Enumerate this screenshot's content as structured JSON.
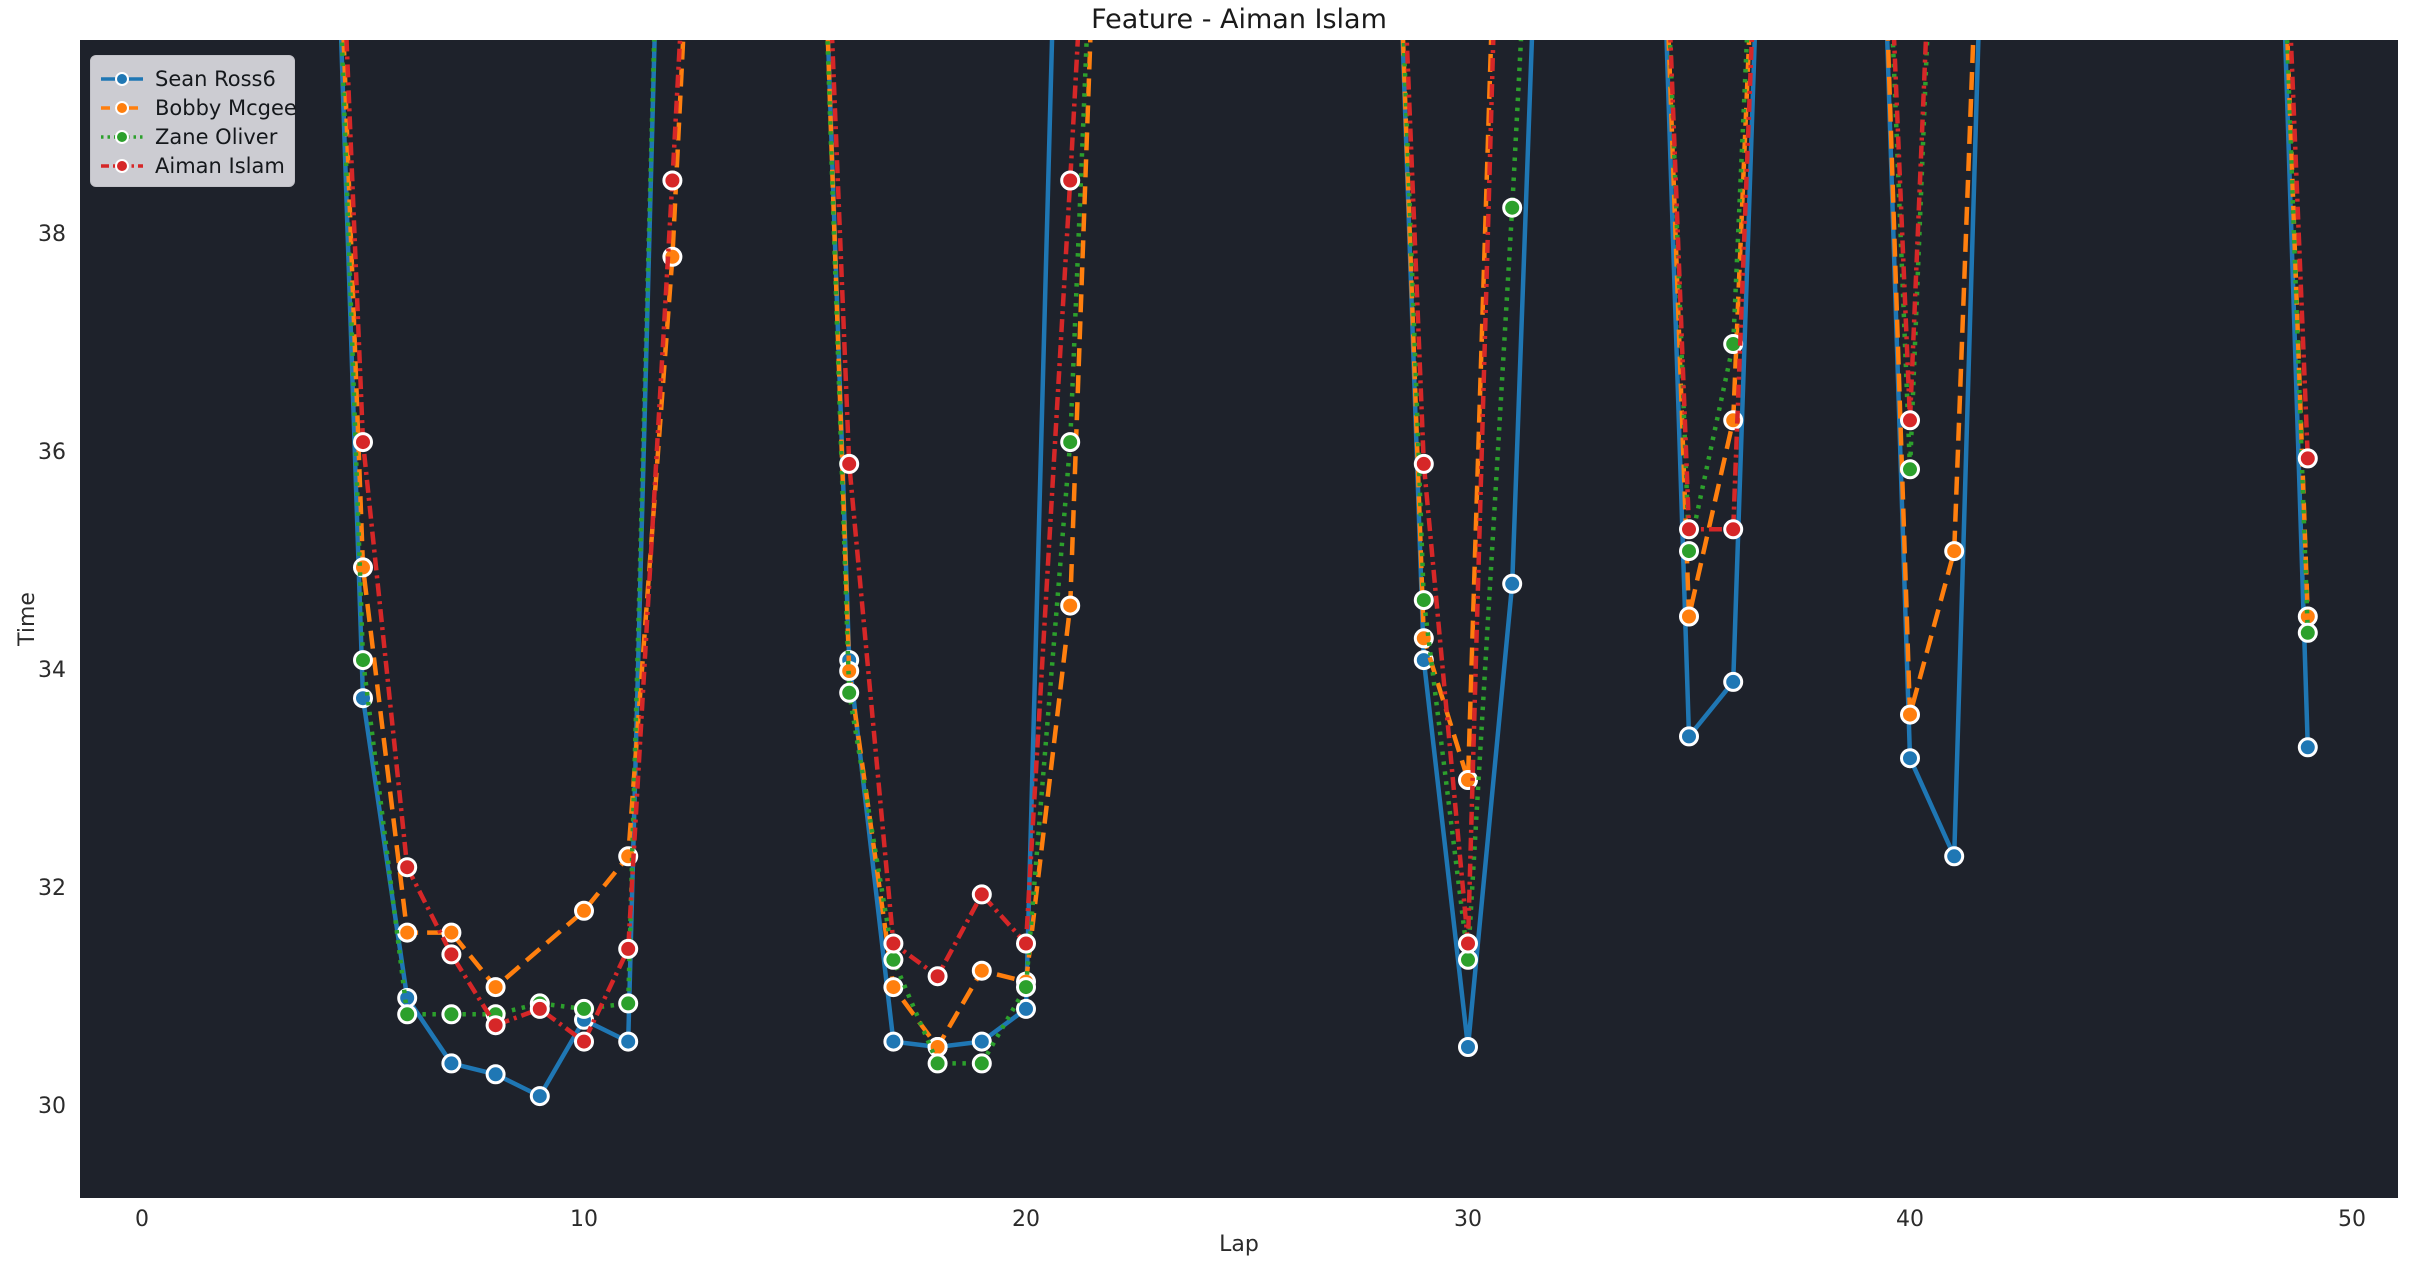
{
  "title": "Feature - Aiman Islam",
  "axes": {
    "xlabel": "Lap",
    "ylabel": "Time",
    "x_ticks": [
      0,
      10,
      20,
      30,
      40,
      50
    ],
    "y_ticks": [
      30,
      32,
      34,
      36,
      38
    ]
  },
  "legend": {
    "position": "upper-left",
    "items": [
      {
        "label": "Sean Ross6"
      },
      {
        "label": "Bobby Mcgee"
      },
      {
        "label": "Zane Oliver"
      },
      {
        "label": "Aiman Islam"
      }
    ]
  },
  "style": {
    "plot_background": "#1e222b",
    "figure_background": "#ffffff",
    "marker_edge": "#ffffff",
    "line_width": 4.5,
    "marker_radius": 8.5
  },
  "chart_data": {
    "type": "line",
    "title": "Feature - Aiman Islam",
    "xlabel": "Lap",
    "ylabel": "Time",
    "x_range": [
      -1.403,
      51.041
    ],
    "y_range": [
      29.165,
      39.789
    ],
    "grid": false,
    "offscale_value": 46,
    "note": "value 46 = spike going off the top of the axes (clipped, no visible marker)",
    "series": [
      {
        "name": "Sean Ross6",
        "color": "#1f77b4",
        "dash": "solid",
        "points": [
          [
            4,
            46
          ],
          [
            5,
            33.75
          ],
          [
            6,
            31.0
          ],
          [
            7,
            30.4
          ],
          [
            8,
            30.3
          ],
          [
            9,
            30.1
          ],
          [
            10,
            30.8
          ],
          [
            11,
            30.6
          ],
          [
            12,
            46
          ],
          [
            15,
            46
          ],
          [
            16,
            34.1
          ],
          [
            17,
            30.6
          ],
          [
            18,
            30.55
          ],
          [
            19,
            30.6
          ],
          [
            20,
            30.9
          ],
          [
            21,
            46
          ],
          [
            28,
            46
          ],
          [
            29,
            34.1
          ],
          [
            30,
            30.55
          ],
          [
            31,
            34.8
          ],
          [
            32,
            46
          ],
          [
            34,
            46
          ],
          [
            35,
            33.4
          ],
          [
            36,
            33.9
          ],
          [
            37,
            46
          ],
          [
            39,
            46
          ],
          [
            40,
            33.2
          ],
          [
            41,
            32.3
          ],
          [
            42,
            46
          ],
          [
            48,
            46
          ],
          [
            49,
            33.3
          ]
        ]
      },
      {
        "name": "Bobby Mcgee",
        "color": "#ff7f0e",
        "dash": "dashed",
        "points": [
          [
            4,
            46
          ],
          [
            5,
            34.95
          ],
          [
            6,
            31.6
          ],
          [
            7,
            31.6
          ],
          [
            8,
            31.1
          ],
          [
            10,
            31.8
          ],
          [
            11,
            32.3
          ],
          [
            12,
            37.8
          ],
          [
            13,
            46
          ],
          [
            15,
            46
          ],
          [
            16,
            34.0
          ],
          [
            17,
            31.1
          ],
          [
            18,
            30.55
          ],
          [
            19,
            31.25
          ],
          [
            20,
            31.15
          ],
          [
            21,
            34.6
          ],
          [
            22,
            46
          ],
          [
            28,
            46
          ],
          [
            29,
            34.3
          ],
          [
            30,
            33.0
          ],
          [
            31,
            46
          ],
          [
            34,
            46
          ],
          [
            35,
            34.5
          ],
          [
            36,
            36.3
          ],
          [
            37,
            46
          ],
          [
            39,
            46
          ],
          [
            40,
            33.6
          ],
          [
            41,
            35.1
          ],
          [
            42,
            46
          ],
          [
            48,
            46
          ],
          [
            49,
            34.5
          ]
        ]
      },
      {
        "name": "Zane Oliver",
        "color": "#2ca02c",
        "dash": "dotted",
        "points": [
          [
            4,
            46
          ],
          [
            5,
            34.1
          ],
          [
            6,
            30.85
          ],
          [
            7,
            30.85
          ],
          [
            8,
            30.85
          ],
          [
            9,
            30.95
          ],
          [
            10,
            30.9
          ],
          [
            11,
            30.95
          ],
          [
            12,
            46
          ],
          [
            15,
            46
          ],
          [
            16,
            33.8
          ],
          [
            17,
            31.35
          ],
          [
            18,
            30.4
          ],
          [
            19,
            30.4
          ],
          [
            20,
            31.1
          ],
          [
            21,
            36.1
          ],
          [
            22,
            46
          ],
          [
            28,
            46
          ],
          [
            29,
            34.65
          ],
          [
            30,
            31.35
          ],
          [
            31,
            38.25
          ],
          [
            32,
            46
          ],
          [
            34,
            46
          ],
          [
            35,
            35.1
          ],
          [
            36,
            37.0
          ],
          [
            37,
            46
          ],
          [
            39,
            46
          ],
          [
            40,
            35.85
          ],
          [
            41,
            46
          ],
          [
            48,
            46
          ],
          [
            49,
            34.35
          ]
        ]
      },
      {
        "name": "Aiman Islam",
        "color": "#d62728",
        "dash": "dashdot",
        "points": [
          [
            4,
            46
          ],
          [
            5,
            36.1
          ],
          [
            6,
            32.2
          ],
          [
            7,
            31.4
          ],
          [
            8,
            30.75
          ],
          [
            9,
            30.9
          ],
          [
            10,
            30.6
          ],
          [
            11,
            31.45
          ],
          [
            12,
            38.5
          ],
          [
            13,
            46
          ],
          [
            15,
            46
          ],
          [
            16,
            35.9
          ],
          [
            17,
            31.5
          ],
          [
            18,
            31.2
          ],
          [
            19,
            31.95
          ],
          [
            20,
            31.5
          ],
          [
            21,
            38.5
          ],
          [
            22,
            46
          ],
          [
            28,
            46
          ],
          [
            29,
            35.9
          ],
          [
            30,
            31.5
          ],
          [
            31,
            46
          ],
          [
            34,
            46
          ],
          [
            35,
            35.3
          ],
          [
            36,
            35.3
          ],
          [
            37,
            46
          ],
          [
            39,
            46
          ],
          [
            40,
            36.3
          ],
          [
            41,
            46
          ],
          [
            48,
            46
          ],
          [
            49,
            35.95
          ]
        ]
      }
    ]
  }
}
